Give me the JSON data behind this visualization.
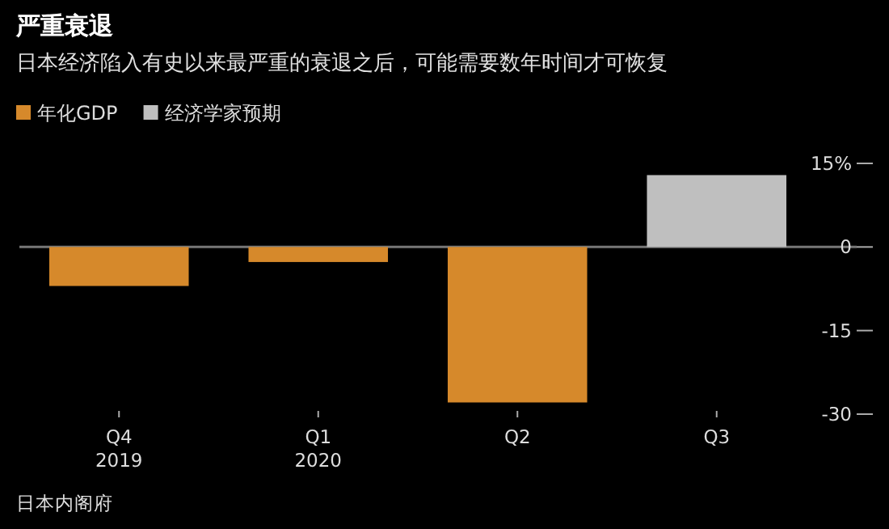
{
  "chart_data": {
    "type": "bar",
    "title": "严重衰退",
    "subtitle": "日本经济陷入有史以来最严重的衰退之后，可能需要数年时间才可恢复",
    "categories": [
      "Q4\n2019",
      "Q1\n2020",
      "Q2",
      "Q3"
    ],
    "series": [
      {
        "name": "年化GDP",
        "color": "#d6892b",
        "values": [
          -7.0,
          -2.7,
          -27.9,
          null
        ]
      },
      {
        "name": "经济学家预期",
        "color": "#bfbfbf",
        "values": [
          null,
          null,
          null,
          12.9
        ]
      }
    ],
    "ylim": [
      -30,
      15
    ],
    "ref_lines": [
      {
        "axis": "y",
        "value": 0,
        "color": "#777777"
      }
    ],
    "yticks": [
      {
        "value": 15,
        "label": "15%"
      },
      0,
      -15,
      -30
    ],
    "legend": "top left",
    "grid": false,
    "annotations": [
      "日本内阁府"
    ]
  }
}
